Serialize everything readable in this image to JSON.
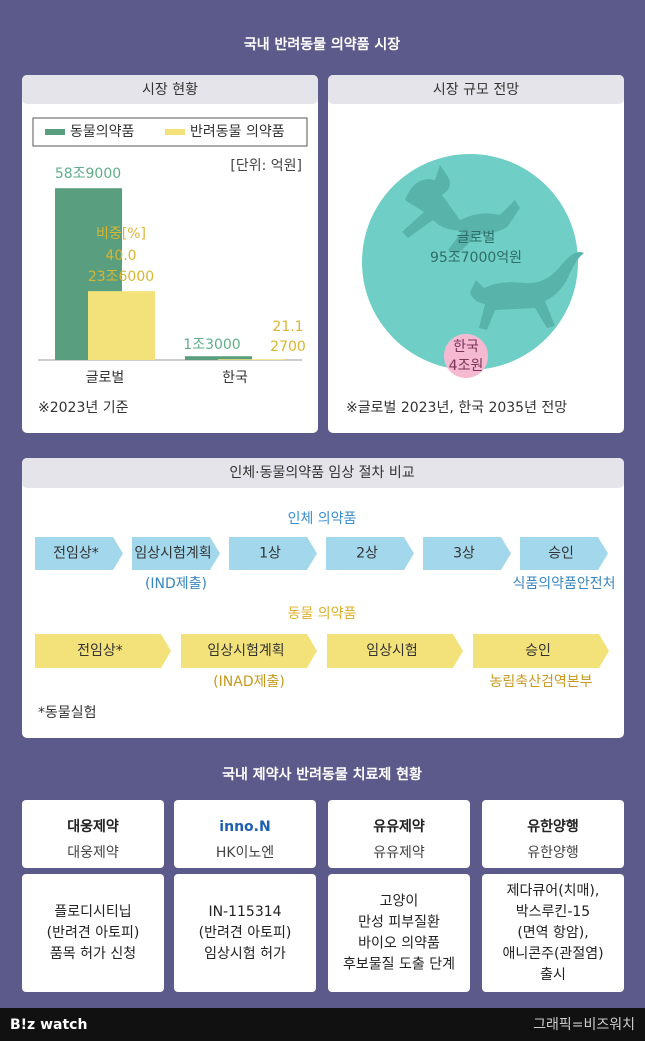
{
  "title": "국내 반려동물 의약품 시장",
  "market": {
    "title": "시장 현황",
    "unit": "[단위: 억원]",
    "note": "※2023년 기준"
  },
  "chart_data": {
    "type": "bar",
    "categories": [
      "글로벌",
      "한국"
    ],
    "series": [
      {
        "name": "동물의약품",
        "color": "#5a9e80",
        "values": [
          589000,
          13000
        ],
        "value_labels": [
          "58조9000",
          "1조3000"
        ]
      },
      {
        "name": "반려동물 의약품",
        "color": "#f3e27a",
        "values": [
          236000,
          2700
        ],
        "value_labels": [
          "23조6000",
          "2700"
        ]
      }
    ],
    "shares": {
      "label": "비중[%]",
      "values": [
        40,
        21.1
      ],
      "value_labels": [
        "40.0",
        "21.1"
      ]
    },
    "ylim": [
      0,
      600000
    ]
  },
  "outlook": {
    "title": "시장 규모 전망",
    "global": {
      "label": "글로벌",
      "value": 957000,
      "value_label": "95조7000억원",
      "color": "#6fcfc6"
    },
    "korea": {
      "label": "한국",
      "value": 40000,
      "value_label": "4조원",
      "color": "#f5b9d2"
    },
    "note": "※글로벌 2023년, 한국 2035년 전망"
  },
  "process": {
    "title": "인체·동물의약품 임상 절차 비교",
    "human": {
      "title": "인체 의약품",
      "steps": [
        {
          "label": "전임상*"
        },
        {
          "label": "임상시험계획",
          "note": "(IND제출)"
        },
        {
          "label": "1상"
        },
        {
          "label": "2상"
        },
        {
          "label": "3상"
        },
        {
          "label": "승인",
          "note": "식품의약품안전처"
        }
      ]
    },
    "animal": {
      "title": "동물 의약품",
      "steps": [
        {
          "label": "전임상*"
        },
        {
          "label": "임상시험계획",
          "note": "(INAD제출)"
        },
        {
          "label": "임상시험"
        },
        {
          "label": "승인",
          "note": "농림축산검역본부"
        }
      ]
    },
    "footnote": "*동물실험"
  },
  "companies": {
    "title": "국내 제약사 반려동물 치료제 현황",
    "items": [
      {
        "logo": "대웅제약",
        "name": "대웅제약",
        "desc": [
          "플로디시티닙",
          "(반려견 아토피)",
          "품목 허가 신청"
        ]
      },
      {
        "logo": "inno.N",
        "name": "HK이노엔",
        "desc": [
          "IN-115314",
          "(반려견 아토피)",
          "임상시험 허가"
        ]
      },
      {
        "logo": "유유제약",
        "name": "유유제약",
        "desc": [
          "고양이",
          "만성 피부질환",
          "바이오 의약품",
          "후보물질 도출 단계"
        ]
      },
      {
        "logo": "유한양행",
        "name": "유한양행",
        "desc": [
          "제다큐어(치매),",
          "박스루킨-15",
          "(면역 항암),",
          "애니콘주(관절염)",
          "출시"
        ]
      }
    ]
  },
  "footer": {
    "brand": "B!z watch",
    "credit": "그래픽=비즈워치"
  }
}
